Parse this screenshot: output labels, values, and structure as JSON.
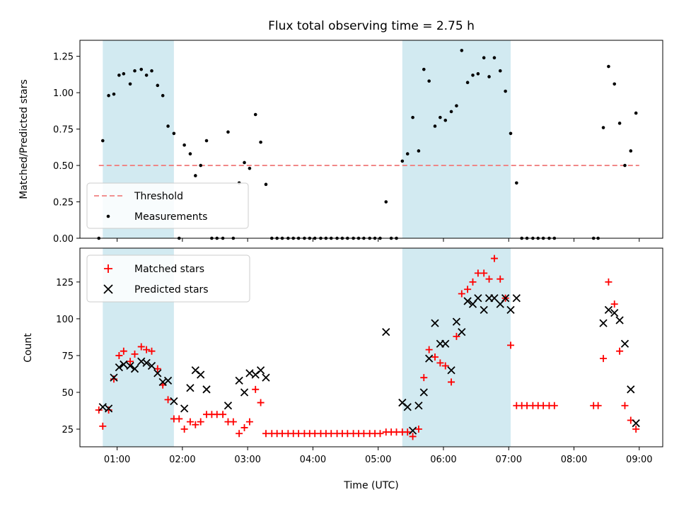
{
  "chart_data": [
    {
      "type": "scatter",
      "title": "Flux total observing time = 2.75 h",
      "xlabel": "",
      "ylabel": "Matched/Predicted stars",
      "ylim": [
        0,
        1.36
      ],
      "yticks": [
        "0.00",
        "0.25",
        "0.50",
        "0.75",
        "1.00",
        "1.25"
      ],
      "ytick_values": [
        0,
        0.25,
        0.5,
        0.75,
        1.0,
        1.25
      ],
      "legend": {
        "position": "lower-left",
        "entries": [
          "Threshold",
          "Measurements"
        ]
      },
      "threshold": {
        "name": "Threshold",
        "value": 0.5,
        "x_range": [
          0.72,
          9.0
        ],
        "color": "#f08080"
      },
      "shaded_spans": [
        [
          0.78,
          1.87
        ],
        [
          5.37,
          7.03
        ]
      ],
      "series": [
        {
          "name": "Measurements",
          "color": "#000000",
          "x": [
            0.72,
            0.78,
            0.87,
            0.95,
            1.03,
            1.1,
            1.2,
            1.27,
            1.37,
            1.45,
            1.53,
            1.62,
            1.7,
            1.78,
            1.87,
            1.95,
            2.03,
            2.12,
            2.2,
            2.28,
            2.37,
            2.45,
            2.53,
            2.62,
            2.7,
            2.78,
            2.87,
            2.95,
            3.03,
            3.12,
            3.2,
            3.28,
            3.37,
            3.45,
            3.53,
            3.62,
            3.7,
            3.78,
            3.87,
            3.95,
            4.03,
            4.12,
            4.2,
            4.28,
            4.37,
            4.45,
            4.53,
            4.62,
            4.7,
            4.78,
            4.87,
            4.95,
            5.03,
            5.12,
            5.2,
            5.28,
            5.37,
            5.45,
            5.53,
            5.62,
            5.7,
            5.78,
            5.87,
            5.95,
            6.03,
            6.12,
            6.2,
            6.28,
            6.37,
            6.45,
            6.53,
            6.62,
            6.7,
            6.78,
            6.87,
            6.95,
            7.03,
            7.12,
            7.2,
            7.28,
            7.37,
            7.45,
            7.53,
            7.62,
            7.7,
            8.3,
            8.37,
            8.45,
            8.53,
            8.62,
            8.7,
            8.78,
            8.87,
            8.95
          ],
          "y": [
            0.0,
            0.67,
            0.98,
            0.99,
            1.12,
            1.13,
            1.06,
            1.15,
            1.16,
            1.12,
            1.15,
            1.05,
            0.98,
            0.77,
            0.72,
            0.0,
            0.64,
            0.58,
            0.43,
            0.5,
            0.67,
            0.0,
            0.0,
            0.0,
            0.73,
            0.0,
            0.38,
            0.52,
            0.48,
            0.85,
            0.66,
            0.37,
            0.0,
            0.0,
            0.0,
            0.0,
            0.0,
            0.0,
            0.0,
            0.0,
            0.0,
            0.0,
            0.0,
            0.0,
            0.0,
            0.0,
            0.0,
            0.0,
            0.0,
            0.0,
            0.0,
            0.0,
            0.0,
            0.25,
            0.0,
            0.0,
            0.53,
            0.58,
            0.83,
            0.6,
            1.16,
            1.08,
            0.77,
            0.83,
            0.81,
            0.87,
            0.91,
            1.29,
            1.07,
            1.12,
            1.13,
            1.24,
            1.11,
            1.24,
            1.15,
            1.01,
            0.72,
            0.38,
            0.0,
            0.0,
            0.0,
            0.0,
            0.0,
            0.0,
            0.0,
            0.0,
            0.0,
            0.76,
            1.18,
            1.06,
            0.79,
            0.5,
            0.6,
            0.86
          ]
        }
      ]
    },
    {
      "type": "scatter",
      "title": "",
      "xlabel": "Time (UTC)",
      "ylabel": "Count",
      "xlim": [
        0.43,
        9.36
      ],
      "ylim": [
        13,
        148
      ],
      "xticks": [
        "01:00",
        "02:00",
        "03:00",
        "04:00",
        "05:00",
        "06:00",
        "07:00",
        "08:00",
        "09:00"
      ],
      "xtick_values": [
        1,
        2,
        3,
        4,
        5,
        6,
        7,
        8,
        9
      ],
      "yticks": [
        "25",
        "50",
        "75",
        "100",
        "125"
      ],
      "ytick_values": [
        25,
        50,
        75,
        100,
        125
      ],
      "legend": {
        "position": "upper-left",
        "entries": [
          "Matched stars",
          "Predicted stars"
        ]
      },
      "shaded_spans": [
        [
          0.78,
          1.87
        ],
        [
          5.37,
          7.03
        ]
      ],
      "series": [
        {
          "name": "Matched stars",
          "marker": "plus",
          "color": "#ff0000",
          "x": [
            0.72,
            0.78,
            0.87,
            0.95,
            1.03,
            1.1,
            1.2,
            1.27,
            1.37,
            1.45,
            1.53,
            1.62,
            1.7,
            1.78,
            1.87,
            1.95,
            2.03,
            2.12,
            2.2,
            2.28,
            2.37,
            2.45,
            2.53,
            2.62,
            2.7,
            2.78,
            2.87,
            2.95,
            3.03,
            3.12,
            3.2,
            3.28,
            3.37,
            3.45,
            3.53,
            3.62,
            3.7,
            3.78,
            3.87,
            3.95,
            4.03,
            4.12,
            4.2,
            4.28,
            4.37,
            4.45,
            4.53,
            4.62,
            4.7,
            4.78,
            4.87,
            4.95,
            5.03,
            5.12,
            5.2,
            5.28,
            5.37,
            5.45,
            5.53,
            5.62,
            5.7,
            5.78,
            5.87,
            5.95,
            6.03,
            6.12,
            6.2,
            6.28,
            6.37,
            6.45,
            6.53,
            6.62,
            6.7,
            6.78,
            6.87,
            6.95,
            7.03,
            7.12,
            7.2,
            7.28,
            7.37,
            7.45,
            7.53,
            7.62,
            7.7,
            8.3,
            8.37,
            8.45,
            8.53,
            8.62,
            8.7,
            8.78,
            8.87,
            8.95
          ],
          "y": [
            38,
            27,
            38,
            59,
            75,
            78,
            71,
            76,
            81,
            79,
            78,
            66,
            55,
            45,
            32,
            32,
            25,
            30,
            28,
            30,
            35,
            35,
            35,
            35,
            30,
            30,
            22,
            26,
            30,
            52,
            43,
            22,
            22,
            22,
            22,
            22,
            22,
            22,
            22,
            22,
            22,
            22,
            22,
            22,
            22,
            22,
            22,
            22,
            22,
            22,
            22,
            22,
            22,
            23,
            23,
            23,
            23,
            23,
            20,
            25,
            60,
            79,
            74,
            70,
            68,
            57,
            88,
            117,
            120,
            125,
            131,
            131,
            127,
            141,
            127,
            114,
            82,
            41,
            41,
            41,
            41,
            41,
            41,
            41,
            41,
            41,
            41,
            73,
            125,
            110,
            78,
            41,
            31,
            25
          ]
        },
        {
          "name": "Predicted stars",
          "marker": "x",
          "color": "#000000",
          "x": [
            0.78,
            0.87,
            0.95,
            1.03,
            1.1,
            1.2,
            1.27,
            1.37,
            1.45,
            1.53,
            1.62,
            1.7,
            1.78,
            1.87,
            2.03,
            2.12,
            2.2,
            2.28,
            2.37,
            2.7,
            2.87,
            2.95,
            3.03,
            3.12,
            3.2,
            3.28,
            5.12,
            5.37,
            5.45,
            5.53,
            5.62,
            5.7,
            5.78,
            5.87,
            5.95,
            6.03,
            6.12,
            6.2,
            6.28,
            6.37,
            6.45,
            6.53,
            6.62,
            6.7,
            6.78,
            6.87,
            6.95,
            7.03,
            7.12,
            8.45,
            8.53,
            8.62,
            8.7,
            8.78,
            8.87,
            8.95
          ],
          "y": [
            40,
            39,
            60,
            67,
            69,
            68,
            66,
            71,
            70,
            68,
            63,
            57,
            58,
            44,
            39,
            53,
            65,
            62,
            52,
            41,
            58,
            50,
            63,
            62,
            65,
            60,
            91,
            43,
            40,
            24,
            41,
            50,
            73,
            97,
            83,
            83,
            65,
            98,
            91,
            112,
            110,
            114,
            106,
            114,
            114,
            110,
            114,
            106,
            114,
            97,
            106,
            104,
            99,
            83,
            52,
            29
          ]
        }
      ]
    }
  ]
}
